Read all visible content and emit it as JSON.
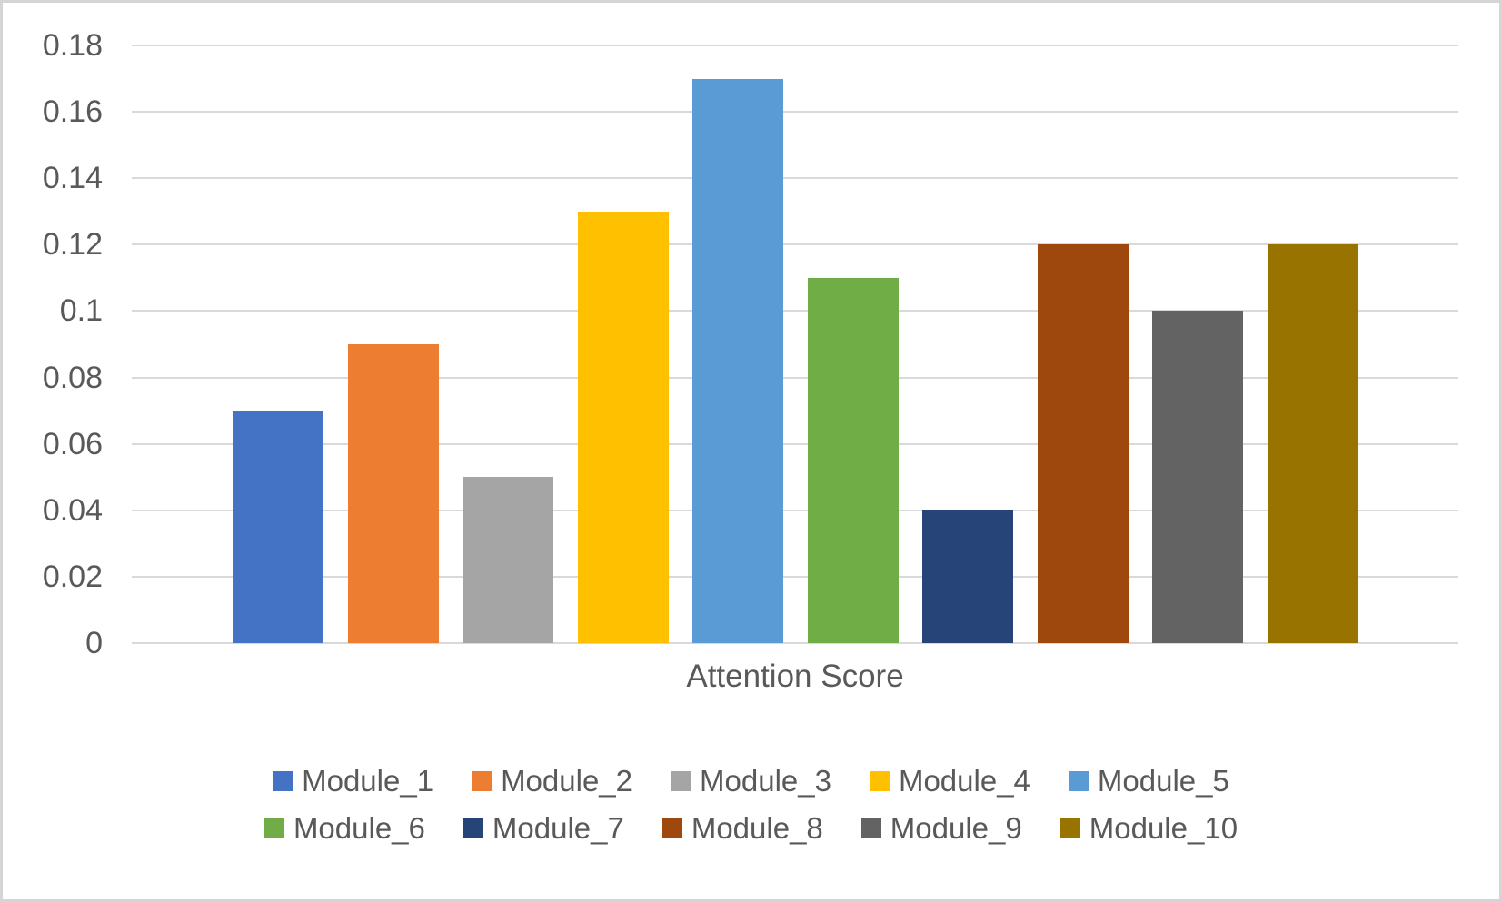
{
  "chart_data": {
    "type": "bar",
    "categories": [
      "Module_1",
      "Module_2",
      "Module_3",
      "Module_4",
      "Module_5",
      "Module_6",
      "Module_7",
      "Module_8",
      "Module_9",
      "Module_10"
    ],
    "values": [
      0.07,
      0.09,
      0.05,
      0.13,
      0.17,
      0.11,
      0.04,
      0.12,
      0.1,
      0.12
    ],
    "colors": [
      "#4472C4",
      "#ED7D31",
      "#A5A5A5",
      "#FFC000",
      "#5B9BD5",
      "#70AD47",
      "#264478",
      "#9E480E",
      "#636363",
      "#997300"
    ],
    "title": "",
    "xlabel": "Attention Score",
    "ylabel": "",
    "ylim": [
      0,
      0.18
    ],
    "ytick_labels": [
      "0.18",
      "0.16",
      "0.14",
      "0.12",
      "0.1",
      "0.08",
      "0.06",
      "0.04",
      "0.02",
      "0"
    ],
    "grid": true,
    "gridline_color": "#d9d9d9",
    "text_color": "#595959",
    "legend_position": "bottom",
    "legend_rows": [
      [
        "Module_1",
        "Module_2",
        "Module_3",
        "Module_4",
        "Module_5"
      ],
      [
        "Module_6",
        "Module_7",
        "Module_8",
        "Module_9",
        "Module_10"
      ]
    ]
  }
}
